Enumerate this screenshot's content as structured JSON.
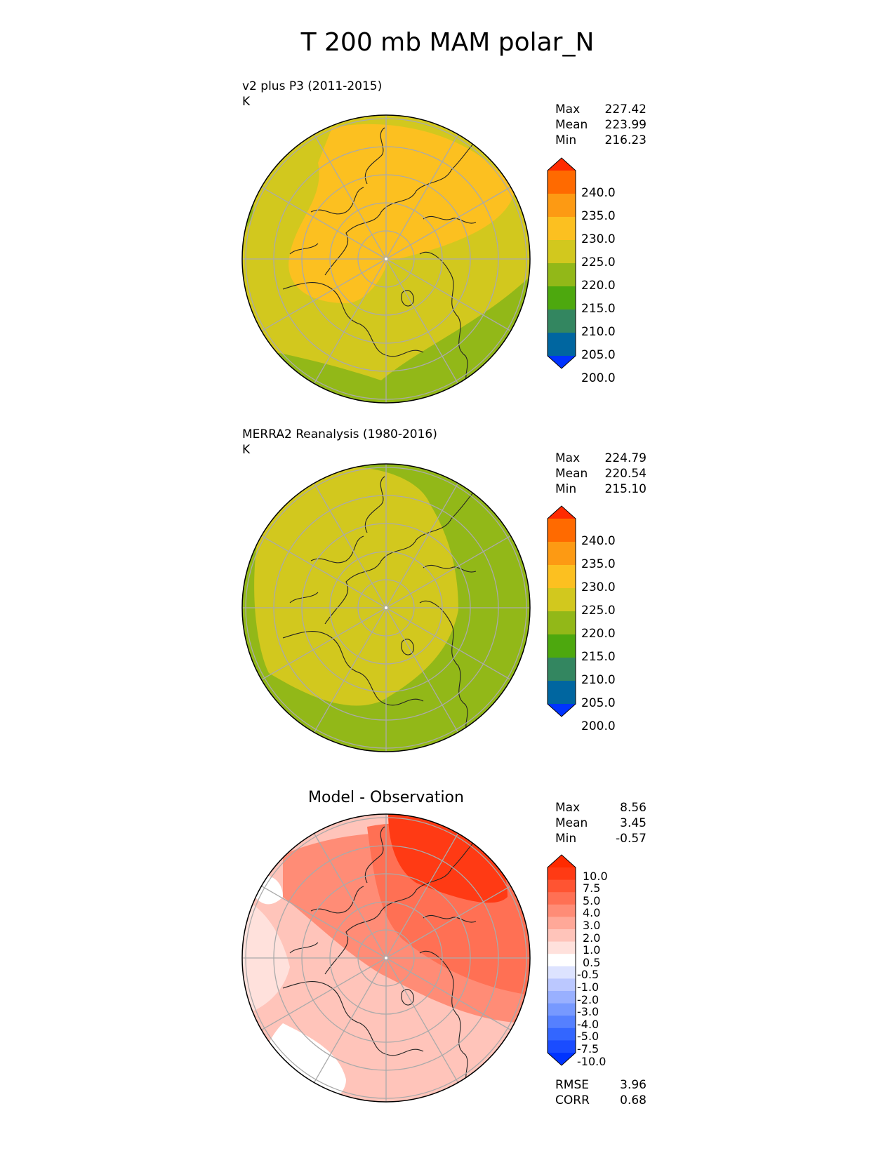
{
  "figure": {
    "title": "T 200 mb MAM polar_N"
  },
  "colors": {
    "field": [
      "#0033ff",
      "#0066a0",
      "#338660",
      "#4da80e",
      "#92b818",
      "#d2c81e",
      "#fcc020",
      "#fd9a13",
      "#ff6a00",
      "#ff2a00"
    ],
    "diff": [
      "#0033ff",
      "#1a4cff",
      "#3366ff",
      "#5580ff",
      "#7799ff",
      "#99b0ff",
      "#bbc8ff",
      "#dde3ff",
      "#ffffff",
      "#ffe1dc",
      "#ffc4ba",
      "#ffa898",
      "#ff8c76",
      "#ff7054",
      "#ff5432",
      "#ff3a14",
      "#ff2a00"
    ]
  },
  "chart_data": [
    {
      "type": "heatmap",
      "projection": "north polar stereographic",
      "title": "v2 plus P3 (2011-2015)",
      "units": "K",
      "stats": {
        "max": "227.42",
        "mean": "223.99",
        "min": "216.23"
      },
      "colorbar": {
        "levels": [
          200.0,
          205.0,
          210.0,
          215.0,
          220.0,
          225.0,
          230.0,
          235.0,
          240.0
        ],
        "tick_labels": [
          "240.0",
          "235.0",
          "230.0",
          "225.0",
          "220.0",
          "215.0",
          "210.0",
          "205.0",
          "200.0"
        ],
        "extend": "both"
      }
    },
    {
      "type": "heatmap",
      "projection": "north polar stereographic",
      "title": "MERRA2 Reanalysis (1980-2016)",
      "units": "K",
      "stats": {
        "max": "224.79",
        "mean": "220.54",
        "min": "215.10"
      },
      "colorbar": {
        "levels": [
          200.0,
          205.0,
          210.0,
          215.0,
          220.0,
          225.0,
          230.0,
          235.0,
          240.0
        ],
        "tick_labels": [
          "240.0",
          "235.0",
          "230.0",
          "225.0",
          "220.0",
          "215.0",
          "210.0",
          "205.0",
          "200.0"
        ],
        "extend": "both"
      }
    },
    {
      "type": "heatmap",
      "projection": "north polar stereographic",
      "title": "Model - Observation",
      "stats": {
        "max": "8.56",
        "mean": "3.45",
        "min": "-0.57",
        "rmse": "3.96",
        "corr": "0.68"
      },
      "colorbar": {
        "levels": [
          -10.0,
          -7.5,
          -5.0,
          -4.0,
          -3.0,
          -2.0,
          -1.0,
          -0.5,
          0.5,
          1.0,
          2.0,
          3.0,
          4.0,
          5.0,
          7.5,
          10.0
        ],
        "tick_labels": [
          "10.0",
          "7.5",
          "5.0",
          "4.0",
          "3.0",
          "2.0",
          "1.0",
          "0.5",
          "-0.5",
          "-1.0",
          "-2.0",
          "-3.0",
          "-4.0",
          "-5.0",
          "-7.5",
          "-10.0"
        ],
        "extend": "both"
      }
    }
  ],
  "labels": {
    "max": "Max",
    "mean": "Mean",
    "min": "Min",
    "rmse": "RMSE",
    "corr": "CORR"
  }
}
